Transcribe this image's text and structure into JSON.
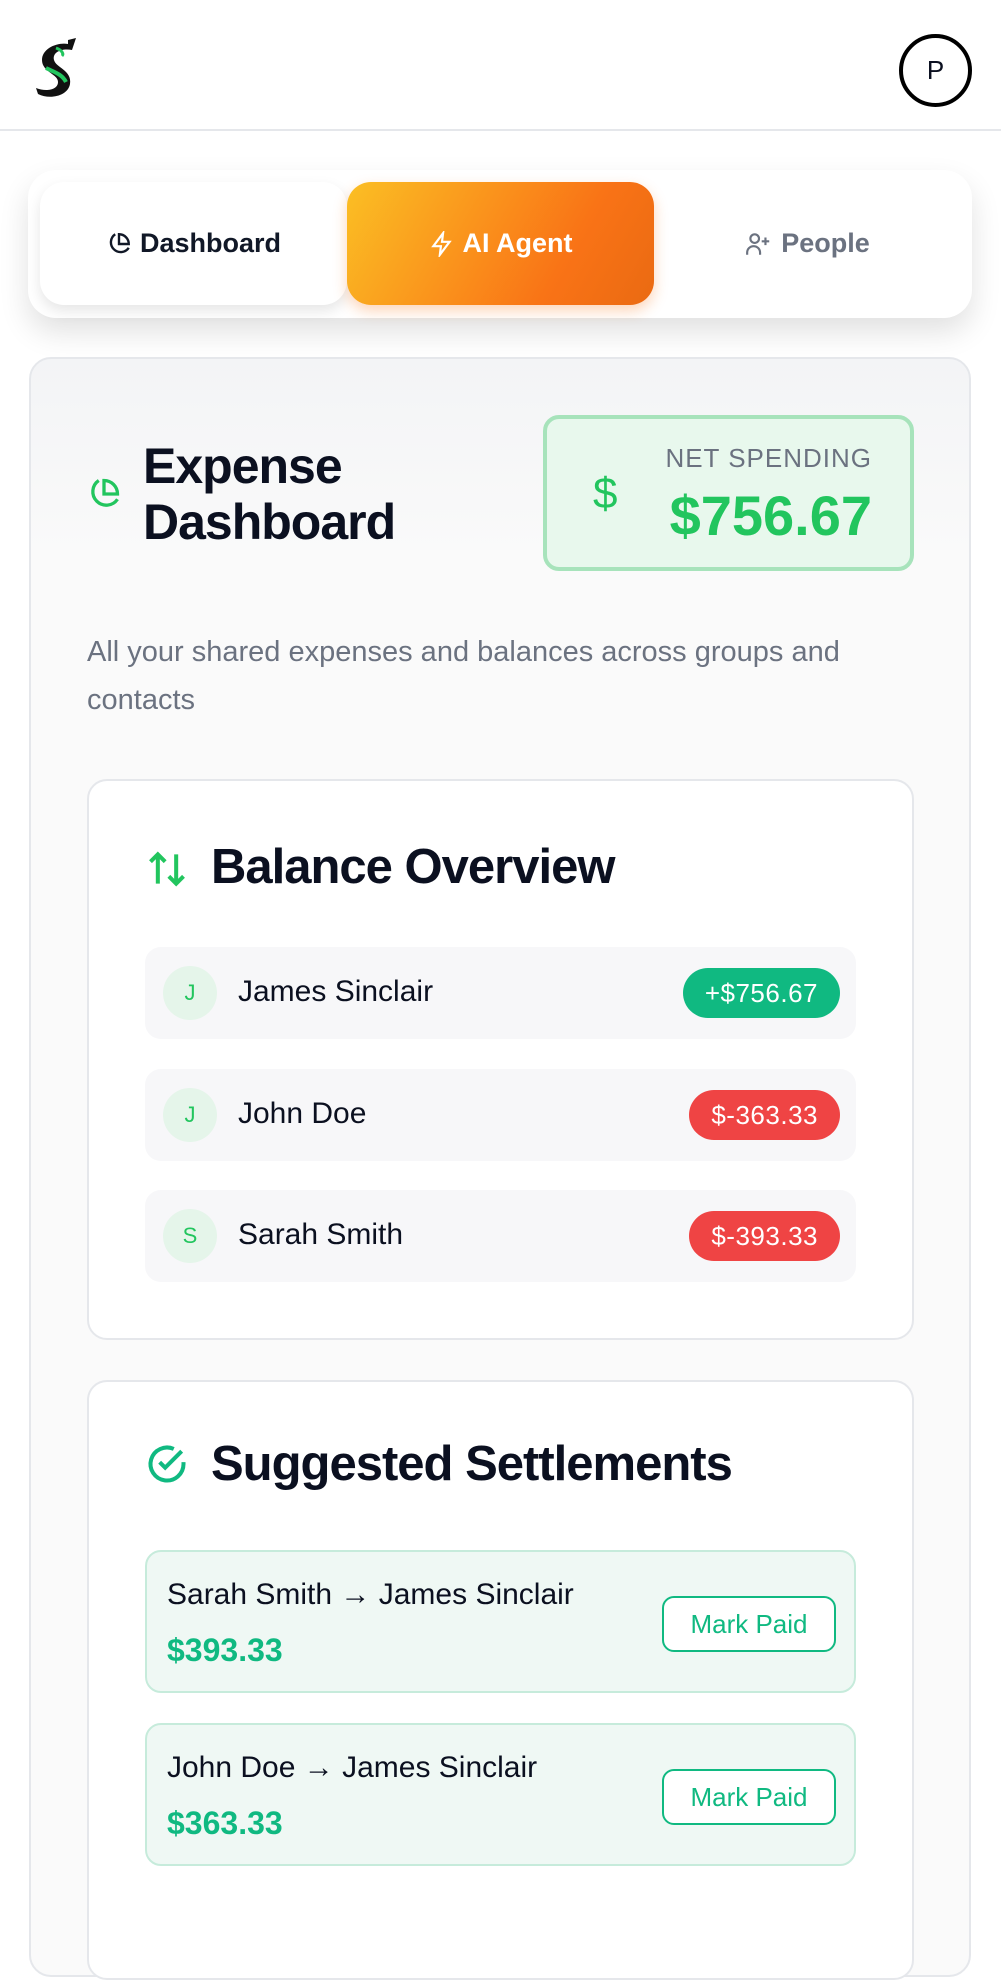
{
  "header": {
    "avatar_initial": "P"
  },
  "tabs": [
    {
      "label": "Dashboard",
      "icon": "pie-chart-icon"
    },
    {
      "label": "AI Agent",
      "icon": "lightning-icon"
    },
    {
      "label": "People",
      "icon": "user-plus-icon"
    }
  ],
  "dashboard": {
    "title": "Expense Dashboard",
    "net_label": "NET SPENDING",
    "net_value": "$756.67",
    "description": "All your shared expenses and balances across groups and contacts"
  },
  "balance": {
    "title": "Balance Overview",
    "rows": [
      {
        "initial": "J",
        "name": "James Sinclair",
        "amount": "+$756.67",
        "status": "positive"
      },
      {
        "initial": "J",
        "name": "John Doe",
        "amount": "$-363.33",
        "status": "negative"
      },
      {
        "initial": "S",
        "name": "Sarah Smith",
        "amount": "$-393.33",
        "status": "negative"
      }
    ]
  },
  "settlements": {
    "title": "Suggested Settlements",
    "button_label": "Mark Paid",
    "rows": [
      {
        "text": "Sarah Smith → James Sinclair",
        "amount": "$393.33"
      },
      {
        "text": "John Doe → James Sinclair",
        "amount": "$363.33"
      }
    ]
  },
  "colors": {
    "positive": "#10b981",
    "negative": "#ef4444",
    "accent": "#22c55e",
    "ai_gradient_start": "#fbbf24",
    "ai_gradient_end": "#f97316"
  }
}
